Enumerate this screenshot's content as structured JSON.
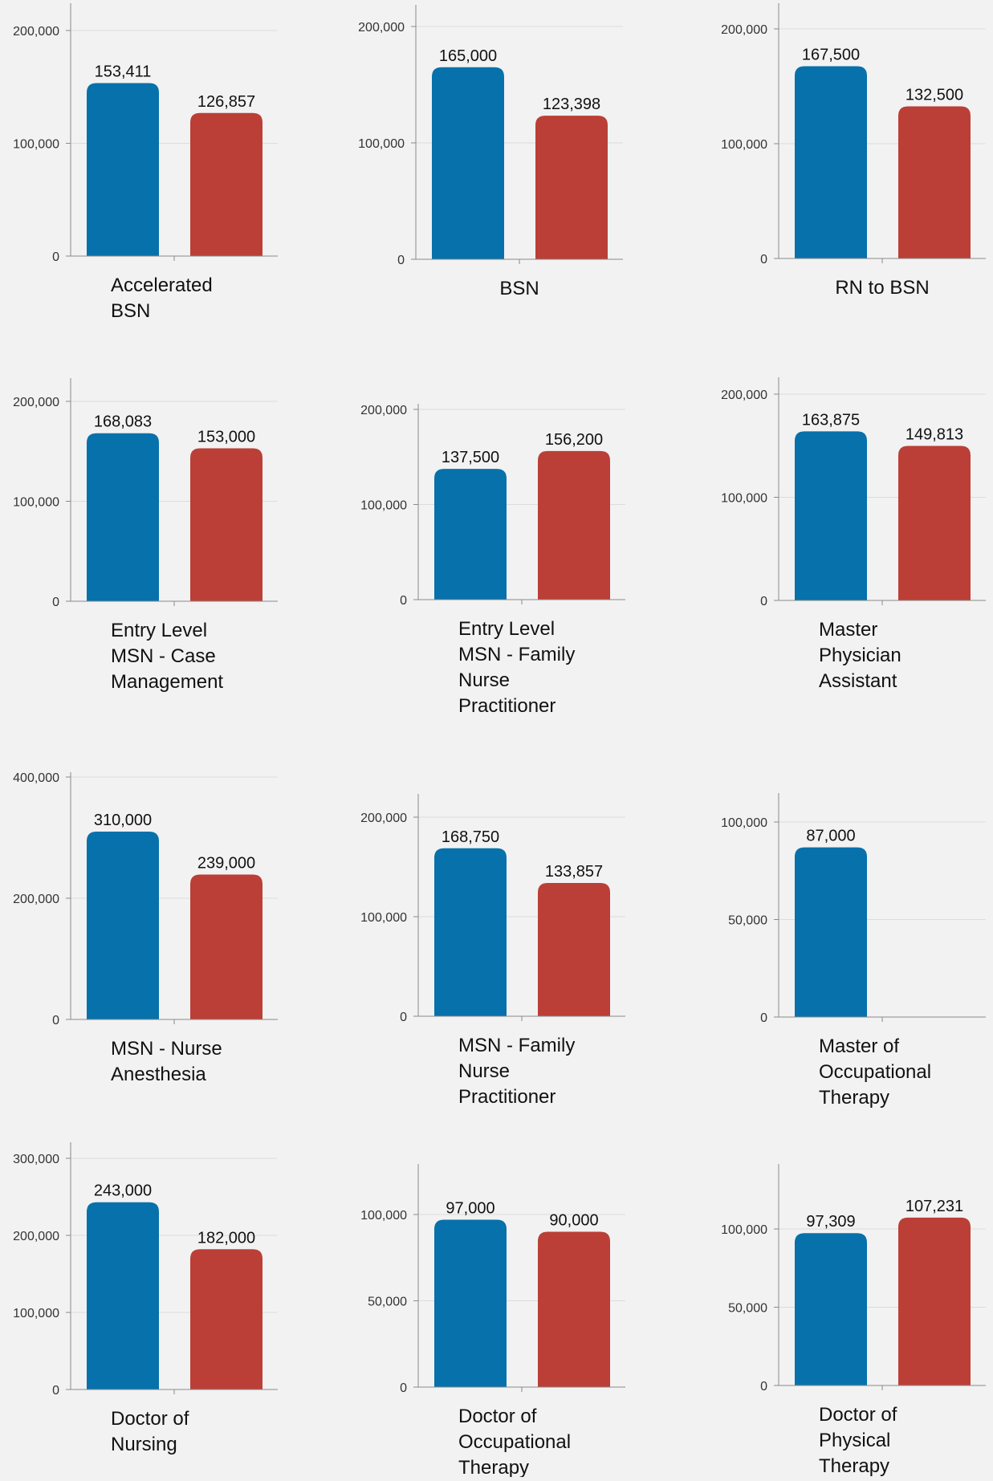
{
  "colors": {
    "series_a": "#0771ab",
    "series_b": "#bb3f36",
    "grid": "#dcdcdc",
    "axis": "#8a8a8a",
    "background": "#f2f2f2"
  },
  "chart_data": [
    {
      "type": "bar",
      "category": [
        "Accelerated",
        "BSN"
      ],
      "values": [
        153411,
        126857
      ],
      "labels": [
        "153,411",
        "126,857"
      ],
      "yticks": [
        0,
        100000,
        200000
      ],
      "ytick_labels": [
        "0",
        "100,000",
        "200,000"
      ],
      "ylim": [
        0,
        200000
      ],
      "grid": true
    },
    {
      "type": "bar",
      "category": [
        "BSN"
      ],
      "values": [
        165000,
        123398
      ],
      "labels": [
        "165,000",
        "123,398"
      ],
      "yticks": [
        0,
        100000,
        200000
      ],
      "ytick_labels": [
        "0",
        "100,000",
        "200,000"
      ],
      "ylim": [
        0,
        200000
      ],
      "grid": true
    },
    {
      "type": "bar",
      "category": [
        "RN to BSN"
      ],
      "values": [
        167500,
        132500
      ],
      "labels": [
        "167,500",
        "132,500"
      ],
      "yticks": [
        0,
        100000,
        200000
      ],
      "ytick_labels": [
        "0",
        "100,000",
        "200,000"
      ],
      "ylim": [
        0,
        200000
      ],
      "grid": true
    },
    {
      "type": "bar",
      "category": [
        "Entry Level",
        "MSN - Case",
        "Management"
      ],
      "values": [
        168083,
        153000
      ],
      "labels": [
        "168,083",
        "153,000"
      ],
      "yticks": [
        0,
        100000,
        200000
      ],
      "ytick_labels": [
        "0",
        "100,000",
        "200,000"
      ],
      "ylim": [
        0,
        200000
      ],
      "grid": true
    },
    {
      "type": "bar",
      "category": [
        "Entry Level",
        "MSN - Family",
        "Nurse",
        "Practitioner"
      ],
      "values": [
        137500,
        156200
      ],
      "labels": [
        "137,500",
        "156,200"
      ],
      "yticks": [
        0,
        100000,
        200000
      ],
      "ytick_labels": [
        "0",
        "100,000",
        "200,000"
      ],
      "ylim": [
        0,
        200000
      ],
      "grid": true
    },
    {
      "type": "bar",
      "category": [
        "Master",
        "Physician",
        "Assistant"
      ],
      "values": [
        163875,
        149813
      ],
      "labels": [
        "163,875",
        "149,813"
      ],
      "yticks": [
        0,
        100000,
        200000
      ],
      "ytick_labels": [
        "0",
        "100,000",
        "200,000"
      ],
      "ylim": [
        0,
        200000
      ],
      "grid": true
    },
    {
      "type": "bar",
      "category": [
        "MSN - Nurse",
        "Anesthesia"
      ],
      "values": [
        310000,
        239000
      ],
      "labels": [
        "310,000",
        "239,000"
      ],
      "yticks": [
        0,
        200000,
        400000
      ],
      "ytick_labels": [
        "0",
        "200,000",
        "400,000"
      ],
      "ylim": [
        0,
        400000
      ],
      "grid": true
    },
    {
      "type": "bar",
      "category": [
        "MSN - Family",
        "Nurse",
        "Practitioner"
      ],
      "values": [
        168750,
        133857
      ],
      "labels": [
        "168,750",
        "133,857"
      ],
      "yticks": [
        0,
        100000,
        200000
      ],
      "ytick_labels": [
        "0",
        "100,000",
        "200,000"
      ],
      "ylim": [
        0,
        200000
      ],
      "grid": true
    },
    {
      "type": "bar",
      "category": [
        "Master of",
        "Occupational",
        "Therapy"
      ],
      "values": [
        87000,
        null
      ],
      "labels": [
        "87,000",
        ""
      ],
      "yticks": [
        0,
        50000,
        100000
      ],
      "ytick_labels": [
        "0",
        "50,000",
        "100,000"
      ],
      "ylim": [
        0,
        100000
      ],
      "grid": true
    },
    {
      "type": "bar",
      "category": [
        "Doctor of",
        "Nursing"
      ],
      "values": [
        243000,
        182000
      ],
      "labels": [
        "243,000",
        "182,000"
      ],
      "yticks": [
        0,
        100000,
        200000,
        300000
      ],
      "ytick_labels": [
        "0",
        "100,000",
        "200,000",
        "300,000"
      ],
      "ylim": [
        0,
        300000
      ],
      "grid": true
    },
    {
      "type": "bar",
      "category": [
        "Doctor of",
        "Occupational",
        "Therapy"
      ],
      "values": [
        97000,
        90000
      ],
      "labels": [
        "97,000",
        "90,000"
      ],
      "yticks": [
        0,
        50000,
        100000
      ],
      "ytick_labels": [
        "0",
        "50,000",
        "100,000"
      ],
      "ylim": [
        0,
        100000
      ],
      "grid": true
    },
    {
      "type": "bar",
      "category": [
        "Doctor of",
        "Physical",
        "Therapy"
      ],
      "values": [
        97309,
        107231
      ],
      "labels": [
        "97,309",
        "107,231"
      ],
      "yticks": [
        0,
        50000,
        100000
      ],
      "ytick_labels": [
        "0",
        "50,000",
        "100,000"
      ],
      "ylim": [
        0,
        100000
      ],
      "grid": true
    }
  ]
}
